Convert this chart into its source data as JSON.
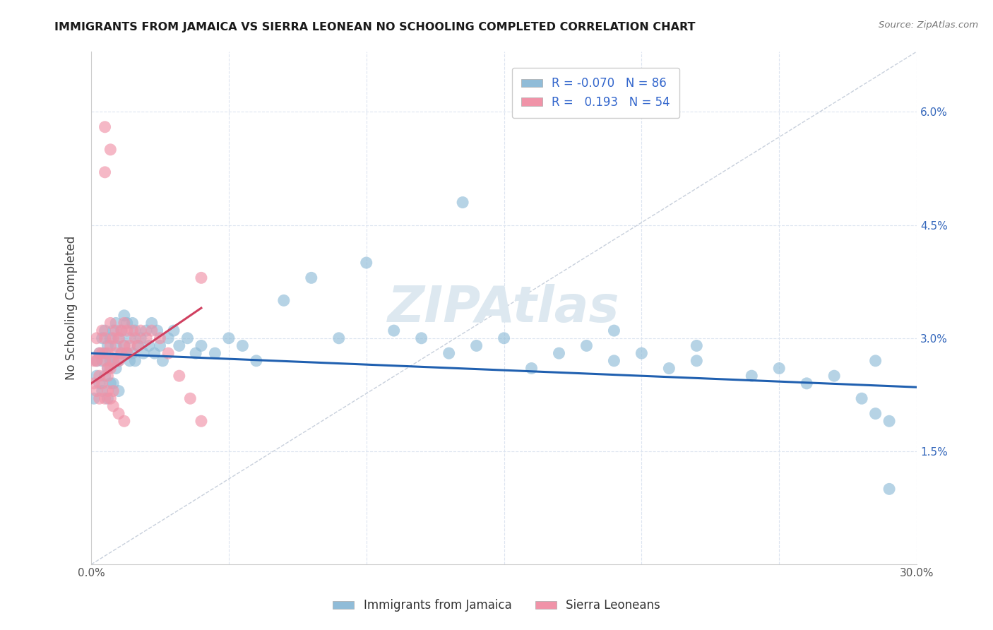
{
  "title": "IMMIGRANTS FROM JAMAICA VS SIERRA LEONEAN NO SCHOOLING COMPLETED CORRELATION CHART",
  "source": "Source: ZipAtlas.com",
  "ylabel": "No Schooling Completed",
  "xlim": [
    0,
    0.3
  ],
  "ylim": [
    0,
    0.068
  ],
  "R_jamaica": -0.07,
  "N_jamaica": 86,
  "R_sierra": 0.193,
  "N_sierra": 54,
  "blue_color": "#90bcd8",
  "pink_color": "#f093a8",
  "blue_line_color": "#2060b0",
  "pink_line_color": "#d04060",
  "grid_color": "#dce4f0",
  "background_color": "#ffffff",
  "jamaica_x": [
    0.001,
    0.002,
    0.002,
    0.003,
    0.003,
    0.004,
    0.004,
    0.004,
    0.005,
    0.005,
    0.005,
    0.006,
    0.006,
    0.006,
    0.007,
    0.007,
    0.007,
    0.008,
    0.008,
    0.008,
    0.009,
    0.009,
    0.009,
    0.01,
    0.01,
    0.01,
    0.011,
    0.011,
    0.012,
    0.012,
    0.013,
    0.013,
    0.014,
    0.014,
    0.015,
    0.015,
    0.016,
    0.016,
    0.017,
    0.018,
    0.019,
    0.02,
    0.021,
    0.022,
    0.023,
    0.024,
    0.025,
    0.026,
    0.028,
    0.03,
    0.032,
    0.035,
    0.038,
    0.04,
    0.045,
    0.05,
    0.055,
    0.06,
    0.07,
    0.08,
    0.09,
    0.1,
    0.11,
    0.12,
    0.13,
    0.14,
    0.15,
    0.16,
    0.17,
    0.18,
    0.19,
    0.2,
    0.21,
    0.22,
    0.24,
    0.25,
    0.26,
    0.27,
    0.28,
    0.285,
    0.29,
    0.135,
    0.19,
    0.22,
    0.285,
    0.29
  ],
  "jamaica_y": [
    0.022,
    0.027,
    0.025,
    0.028,
    0.024,
    0.03,
    0.027,
    0.023,
    0.031,
    0.028,
    0.025,
    0.029,
    0.026,
    0.022,
    0.03,
    0.027,
    0.024,
    0.031,
    0.027,
    0.024,
    0.032,
    0.029,
    0.026,
    0.03,
    0.027,
    0.023,
    0.031,
    0.028,
    0.033,
    0.029,
    0.032,
    0.028,
    0.03,
    0.027,
    0.032,
    0.028,
    0.031,
    0.027,
    0.029,
    0.03,
    0.028,
    0.031,
    0.029,
    0.032,
    0.028,
    0.031,
    0.029,
    0.027,
    0.03,
    0.031,
    0.029,
    0.03,
    0.028,
    0.029,
    0.028,
    0.03,
    0.029,
    0.027,
    0.035,
    0.038,
    0.03,
    0.04,
    0.031,
    0.03,
    0.028,
    0.029,
    0.03,
    0.026,
    0.028,
    0.029,
    0.027,
    0.028,
    0.026,
    0.027,
    0.025,
    0.026,
    0.024,
    0.025,
    0.022,
    0.02,
    0.019,
    0.048,
    0.031,
    0.029,
    0.027,
    0.01
  ],
  "sierra_x": [
    0.001,
    0.001,
    0.002,
    0.002,
    0.002,
    0.003,
    0.003,
    0.003,
    0.004,
    0.004,
    0.004,
    0.005,
    0.005,
    0.005,
    0.006,
    0.006,
    0.006,
    0.007,
    0.007,
    0.007,
    0.008,
    0.008,
    0.008,
    0.009,
    0.009,
    0.01,
    0.01,
    0.011,
    0.011,
    0.012,
    0.012,
    0.013,
    0.013,
    0.014,
    0.015,
    0.016,
    0.017,
    0.018,
    0.02,
    0.022,
    0.025,
    0.028,
    0.032,
    0.036,
    0.04,
    0.005,
    0.006,
    0.007,
    0.008,
    0.01,
    0.012,
    0.005,
    0.007,
    0.04
  ],
  "sierra_y": [
    0.027,
    0.024,
    0.03,
    0.027,
    0.023,
    0.028,
    0.025,
    0.022,
    0.031,
    0.028,
    0.024,
    0.03,
    0.027,
    0.052,
    0.028,
    0.026,
    0.023,
    0.032,
    0.029,
    0.026,
    0.03,
    0.027,
    0.023,
    0.031,
    0.028,
    0.03,
    0.027,
    0.031,
    0.028,
    0.032,
    0.029,
    0.031,
    0.028,
    0.029,
    0.031,
    0.03,
    0.029,
    0.031,
    0.03,
    0.031,
    0.03,
    0.028,
    0.025,
    0.022,
    0.019,
    0.022,
    0.025,
    0.022,
    0.021,
    0.02,
    0.019,
    0.058,
    0.055,
    0.038
  ],
  "blue_trendline_x": [
    0.0,
    0.3
  ],
  "blue_trendline_y": [
    0.028,
    0.0235
  ],
  "pink_trendline_x": [
    0.0,
    0.04
  ],
  "pink_trendline_y": [
    0.024,
    0.034
  ],
  "ref_line_color": "#c8d0dc",
  "ref_line_x": [
    0.0,
    0.3
  ],
  "ref_line_y": [
    0.0,
    0.068
  ]
}
